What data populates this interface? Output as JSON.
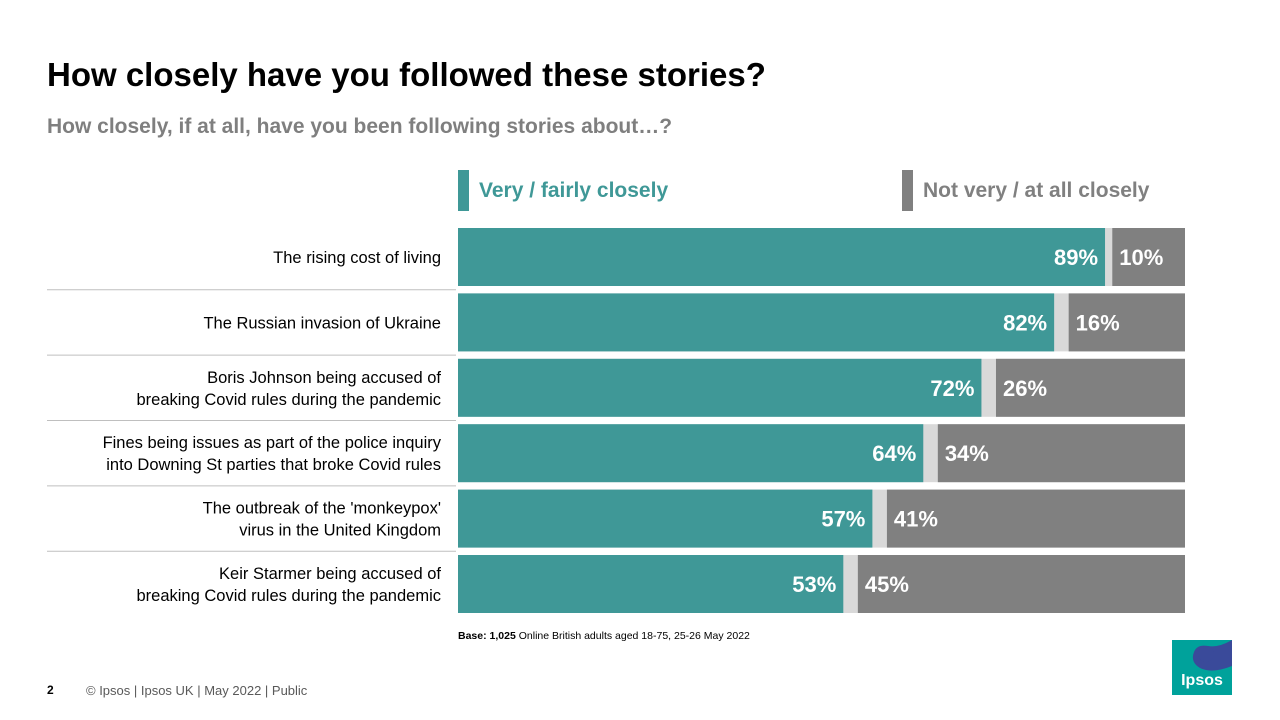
{
  "header": {
    "title": "How closely have you followed these stories?",
    "subtitle": "How closely, if at all, have you been following stories about…?"
  },
  "colors": {
    "very_fairly": "#3f9897",
    "not_very": "#808080",
    "dont_know": "#d9d9d9",
    "divider": "#bfbfbf"
  },
  "chart_data": {
    "type": "bar",
    "orientation": "horizontal",
    "stacked": true,
    "categories": [
      [
        "The rising cost of living"
      ],
      [
        "The Russian invasion of Ukraine"
      ],
      [
        "Boris Johnson being accused of",
        "breaking Covid rules during the pandemic"
      ],
      [
        "Fines being issues as part of the police inquiry",
        "into Downing St parties that broke Covid rules"
      ],
      [
        "The outbreak of the 'monkeypox'",
        "virus in the United Kingdom"
      ],
      [
        "Keir Starmer being accused of",
        "breaking Covid rules during the pandemic"
      ]
    ],
    "series": [
      {
        "name": "Very / fairly closely",
        "values": [
          89,
          82,
          72,
          64,
          57,
          53
        ],
        "labels": [
          "89%",
          "82%",
          "72%",
          "64%",
          "57%",
          "53%"
        ]
      },
      {
        "name": "Not very / at all closely",
        "values": [
          10,
          16,
          26,
          34,
          41,
          45
        ],
        "labels": [
          "10%",
          "16%",
          "26%",
          "34%",
          "41%",
          "45%"
        ]
      }
    ],
    "xlim": [
      0,
      100
    ],
    "legend_position": "top"
  },
  "notes": {
    "base_label": "Base:",
    "base_count": "1,025",
    "base_text": "Online British adults aged 18-75, 25-26 May 2022"
  },
  "footer": {
    "page_number": "2",
    "text": "© Ipsos | Ipsos UK | May 2022 | Public"
  },
  "logo": {
    "text": "Ipsos"
  }
}
